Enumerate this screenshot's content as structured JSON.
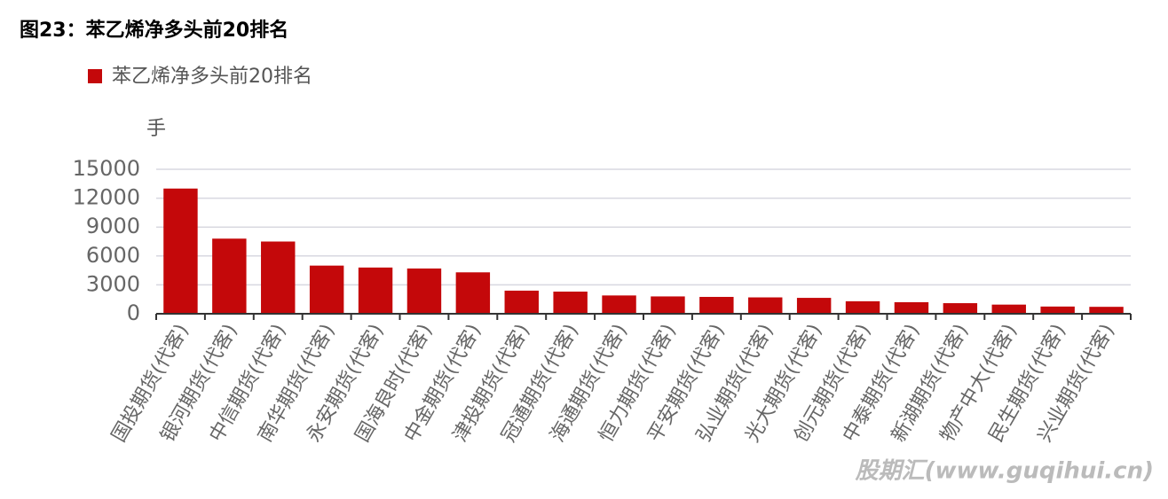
{
  "chart_data": {
    "type": "bar",
    "title": "图23：苯乙烯净多头前20排名",
    "y_axis_label": "手",
    "categories": [
      "国投期货(代客)",
      "银河期货(代客)",
      "中信期货(代客)",
      "南华期货(代客)",
      "永安期货(代客)",
      "国海良时(代客)",
      "中金期货(代客)",
      "津投期货(代客)",
      "冠通期货(代客)",
      "海通期货(代客)",
      "恒力期货(代客)",
      "平安期货(代客)",
      "弘业期货(代客)",
      "光大期货(代客)",
      "创元期货(代客)",
      "中泰期货(代客)",
      "新湖期货(代客)",
      "物产中大(代客)",
      "民生期货(代客)",
      "兴业期货(代客)"
    ],
    "series": [
      {
        "name": "苯乙烯净多头前20排名",
        "color": "#c4080a",
        "values": [
          13000,
          7800,
          7500,
          5000,
          4800,
          4700,
          4300,
          2400,
          2300,
          1900,
          1800,
          1750,
          1700,
          1650,
          1300,
          1200,
          1100,
          950,
          750,
          720
        ]
      }
    ],
    "ylim": [
      0,
      15000
    ],
    "yticks": [
      0,
      3000,
      6000,
      9000,
      12000,
      15000
    ],
    "grid": true,
    "legend": "top-left",
    "watermark": "股期汇(www.guqihui.cn)"
  }
}
